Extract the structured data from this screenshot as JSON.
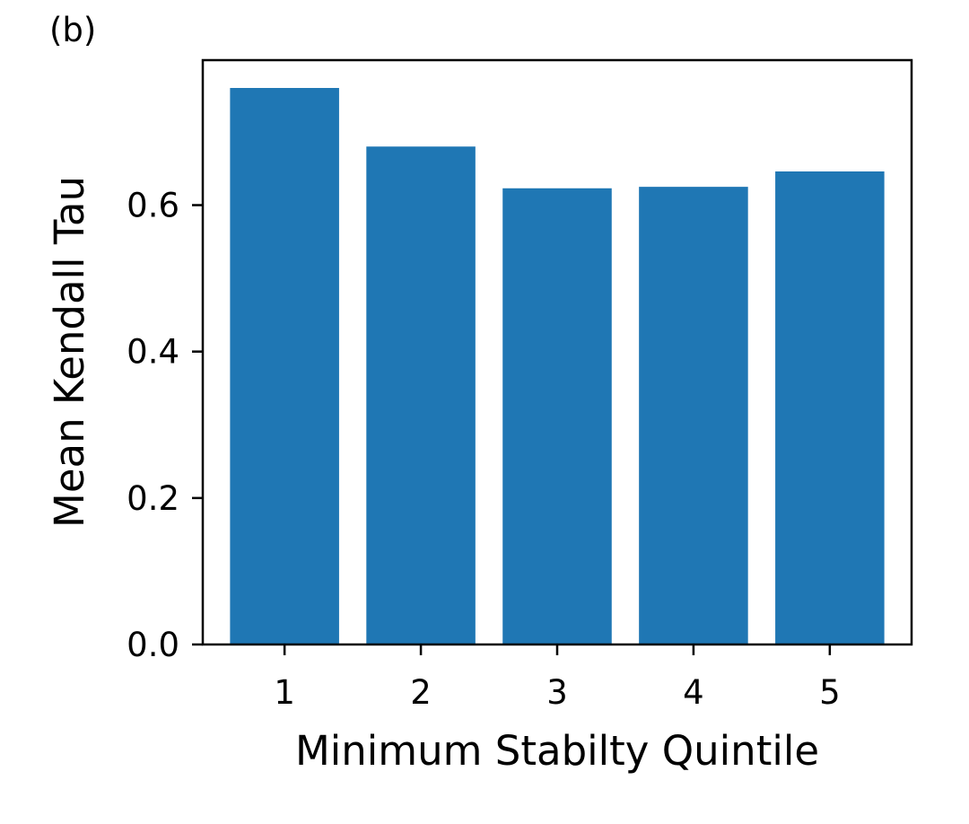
{
  "panel_label": "(b)",
  "chart_data": {
    "type": "bar",
    "categories": [
      "1",
      "2",
      "3",
      "4",
      "5"
    ],
    "values": [
      0.76,
      0.68,
      0.623,
      0.625,
      0.646
    ],
    "xlabel": "Minimum Stabilty Quintile",
    "ylabel": "Mean Kendall Tau",
    "ylim": [
      0,
      0.798
    ],
    "yticks": [
      0.0,
      0.2,
      0.4,
      0.6
    ],
    "ytick_labels": [
      "0.0",
      "0.2",
      "0.4",
      "0.6"
    ],
    "grid": false,
    "bar_color": "#1f77b4"
  }
}
